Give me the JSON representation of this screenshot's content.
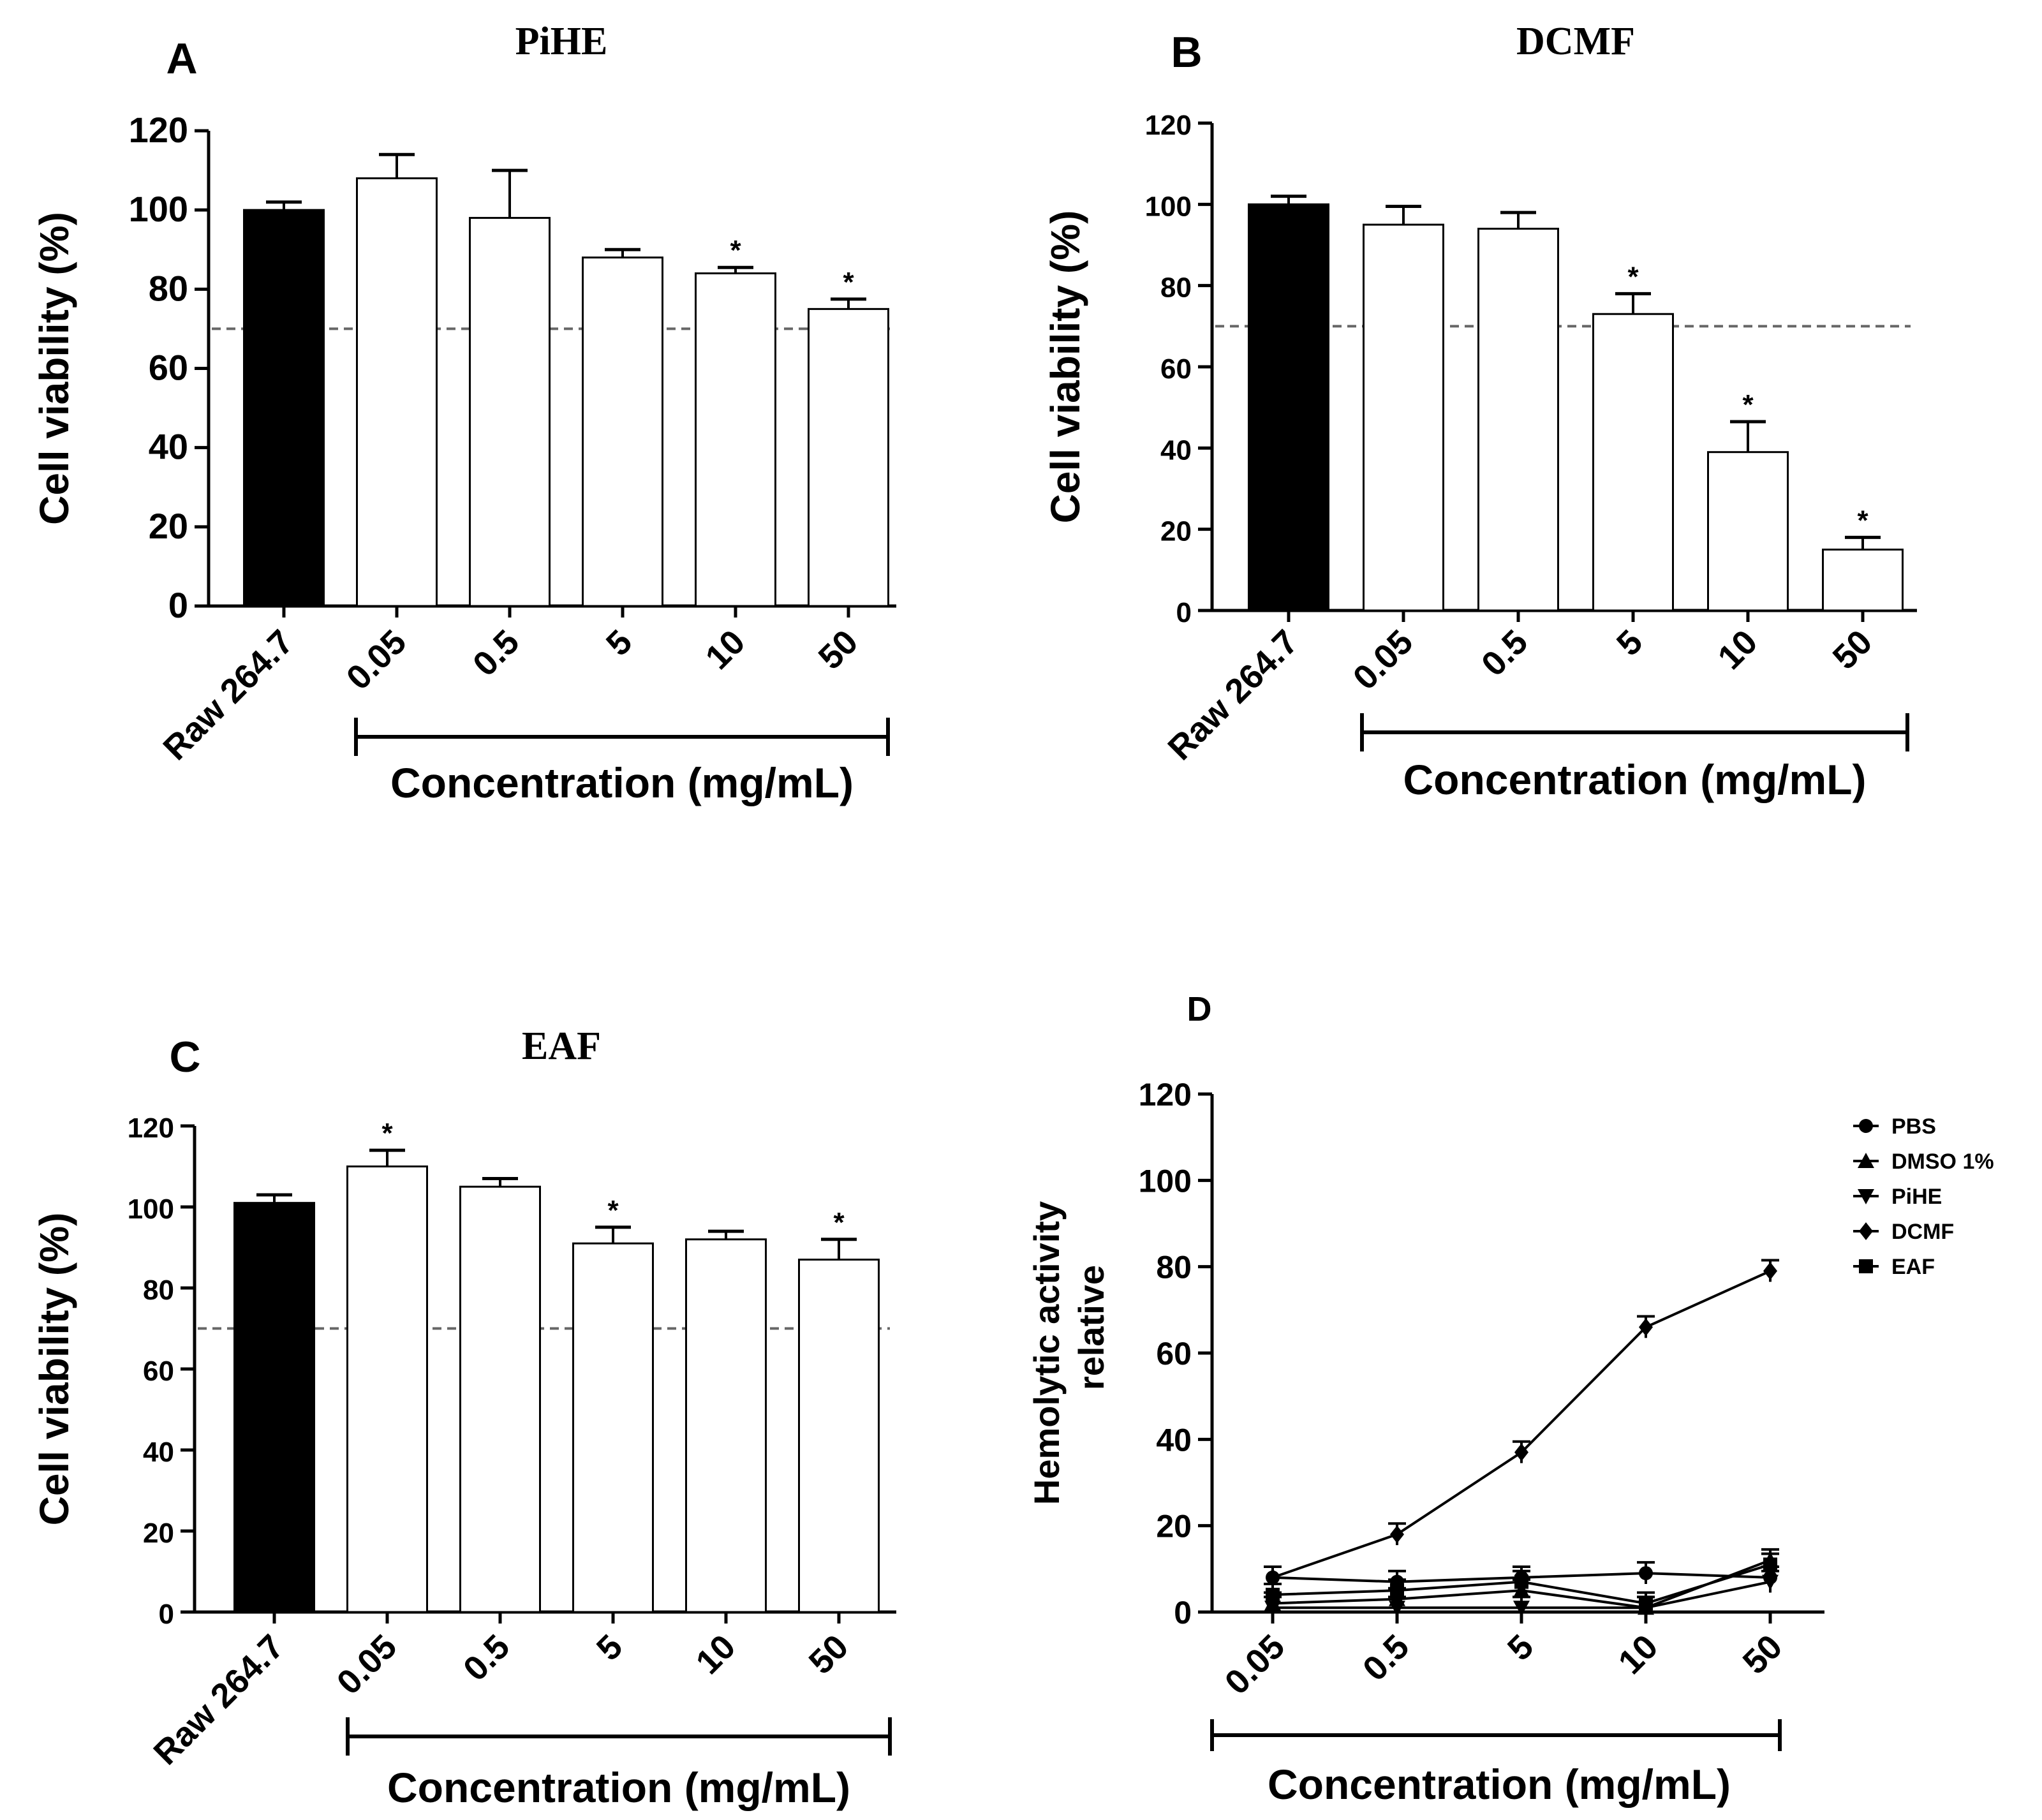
{
  "chart_data": [
    {
      "type": "bar",
      "letter": "A",
      "title": "PiHE",
      "ylabel": "Cell viability (%)",
      "xlabel": "Concentration (mg/mL)",
      "ylim": [
        0,
        120
      ],
      "yticks": [
        "0",
        "20",
        "40",
        "60",
        "80",
        "100",
        "120"
      ],
      "categories": [
        "Raw 264.7",
        "0.05",
        "0.5",
        "5",
        "10",
        "50"
      ],
      "values": [
        100,
        108,
        98,
        88,
        84,
        75
      ],
      "errors": [
        2,
        6,
        12,
        2,
        1.5,
        2.5
      ],
      "significance": [
        "",
        "",
        "",
        "",
        "*",
        "*"
      ],
      "control_color": "#000000",
      "threshold": 70
    },
    {
      "type": "bar",
      "letter": "B",
      "title": "DCMF",
      "ylabel": "Cell viability (%)",
      "xlabel": "Concentration (mg/mL)",
      "ylim": [
        0,
        120
      ],
      "yticks": [
        "0",
        "20",
        "40",
        "60",
        "80",
        "100",
        "120"
      ],
      "categories": [
        "Raw 264.7",
        "0.05",
        "0.5",
        "5",
        "10",
        "50"
      ],
      "values": [
        100,
        95,
        94,
        73,
        39,
        15
      ],
      "errors": [
        2,
        4.5,
        4,
        5,
        7.5,
        3
      ],
      "significance": [
        "",
        "",
        "",
        "*",
        "*",
        "*"
      ],
      "control_color": "#000000",
      "threshold": 70
    },
    {
      "type": "bar",
      "letter": "C",
      "title": "EAF",
      "ylabel": "Cell viability (%)",
      "xlabel": "Concentration (mg/mL)",
      "ylim": [
        0,
        120
      ],
      "yticks": [
        "0",
        "20",
        "40",
        "60",
        "80",
        "100",
        "120"
      ],
      "categories": [
        "Raw 264.7",
        "0.05",
        "0.5",
        "5",
        "10",
        "50"
      ],
      "values": [
        101,
        110,
        105,
        91,
        92,
        87
      ],
      "errors": [
        2,
        4,
        2,
        4,
        2,
        5
      ],
      "significance": [
        "",
        "*",
        "",
        "*",
        "",
        "*"
      ],
      "control_color": "#000000",
      "threshold": 70
    },
    {
      "type": "line",
      "letter": "D",
      "ylabel_line1": "Hemolytic activity",
      "ylabel_line2": "relative",
      "xlabel": "Concentration (mg/mL)",
      "ylim": [
        0,
        120
      ],
      "yticks": [
        "0",
        "20",
        "40",
        "60",
        "80",
        "100",
        "120"
      ],
      "categories": [
        "0.05",
        "0.5",
        "5",
        "10",
        "50"
      ],
      "series": [
        {
          "name": "PBS",
          "marker": "circle",
          "values": [
            8,
            7,
            8,
            9,
            8
          ]
        },
        {
          "name": "DMSO 1%",
          "marker": "triangle-up",
          "values": [
            2,
            3,
            5,
            1,
            12
          ]
        },
        {
          "name": "PiHE",
          "marker": "triangle-down",
          "values": [
            1,
            1,
            1,
            1,
            7
          ]
        },
        {
          "name": "DCMF",
          "marker": "diamond",
          "values": [
            8,
            18,
            37,
            66,
            79
          ]
        },
        {
          "name": "EAF",
          "marker": "square",
          "values": [
            4,
            5,
            7,
            2,
            11
          ]
        }
      ]
    }
  ]
}
